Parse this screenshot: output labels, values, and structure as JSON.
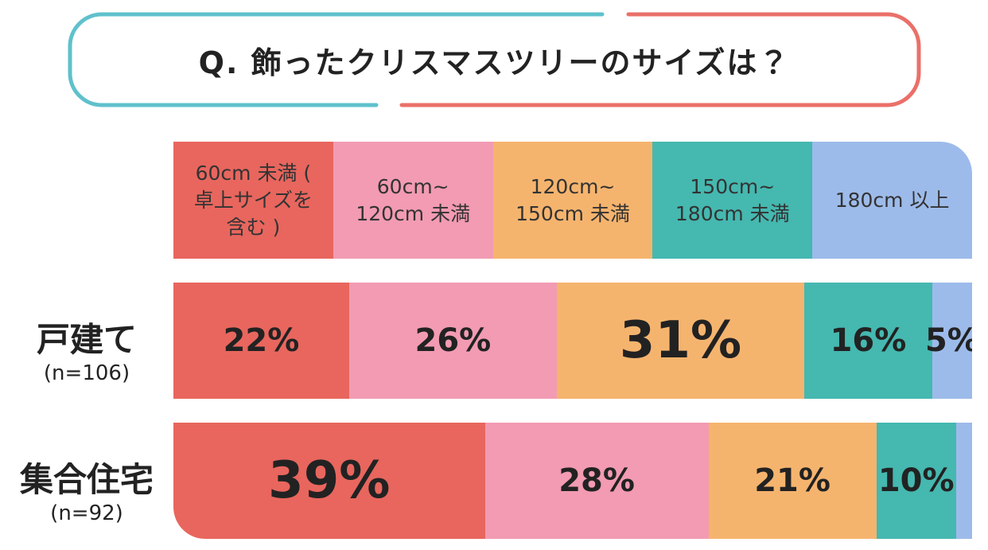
{
  "chart_data": {
    "type": "bar",
    "orientation": "horizontal",
    "stacked": true,
    "title": "Q. 飾ったクリスマスツリーのサイズは？",
    "categories": [
      "戸建て",
      "集合住宅"
    ],
    "category_notes": [
      "(n=106)",
      "(n=92)"
    ],
    "xlim": [
      0,
      100
    ],
    "series": [
      {
        "name": "60cm 未満 ( 卓上サイズを含む )",
        "color": "#e8665e",
        "values": [
          22,
          39
        ],
        "value_labels": [
          "22%",
          "39%"
        ]
      },
      {
        "name": "60cm~ 120cm 未満",
        "color": "#f29bb3",
        "values": [
          26,
          28
        ],
        "value_labels": [
          "26%",
          "28%"
        ]
      },
      {
        "name": "120cm~ 150cm 未満",
        "color": "#f5b46e",
        "values": [
          31,
          21
        ],
        "value_labels": [
          "31%",
          "21%"
        ]
      },
      {
        "name": "150cm~ 180cm 未満",
        "color": "#45b8b0",
        "values": [
          16,
          10
        ],
        "value_labels": [
          "16%",
          "10%"
        ]
      },
      {
        "name": "180cm 以上",
        "color": "#9dbbea",
        "values": [
          5,
          2
        ],
        "value_labels": [
          "5%",
          null
        ]
      }
    ]
  }
}
